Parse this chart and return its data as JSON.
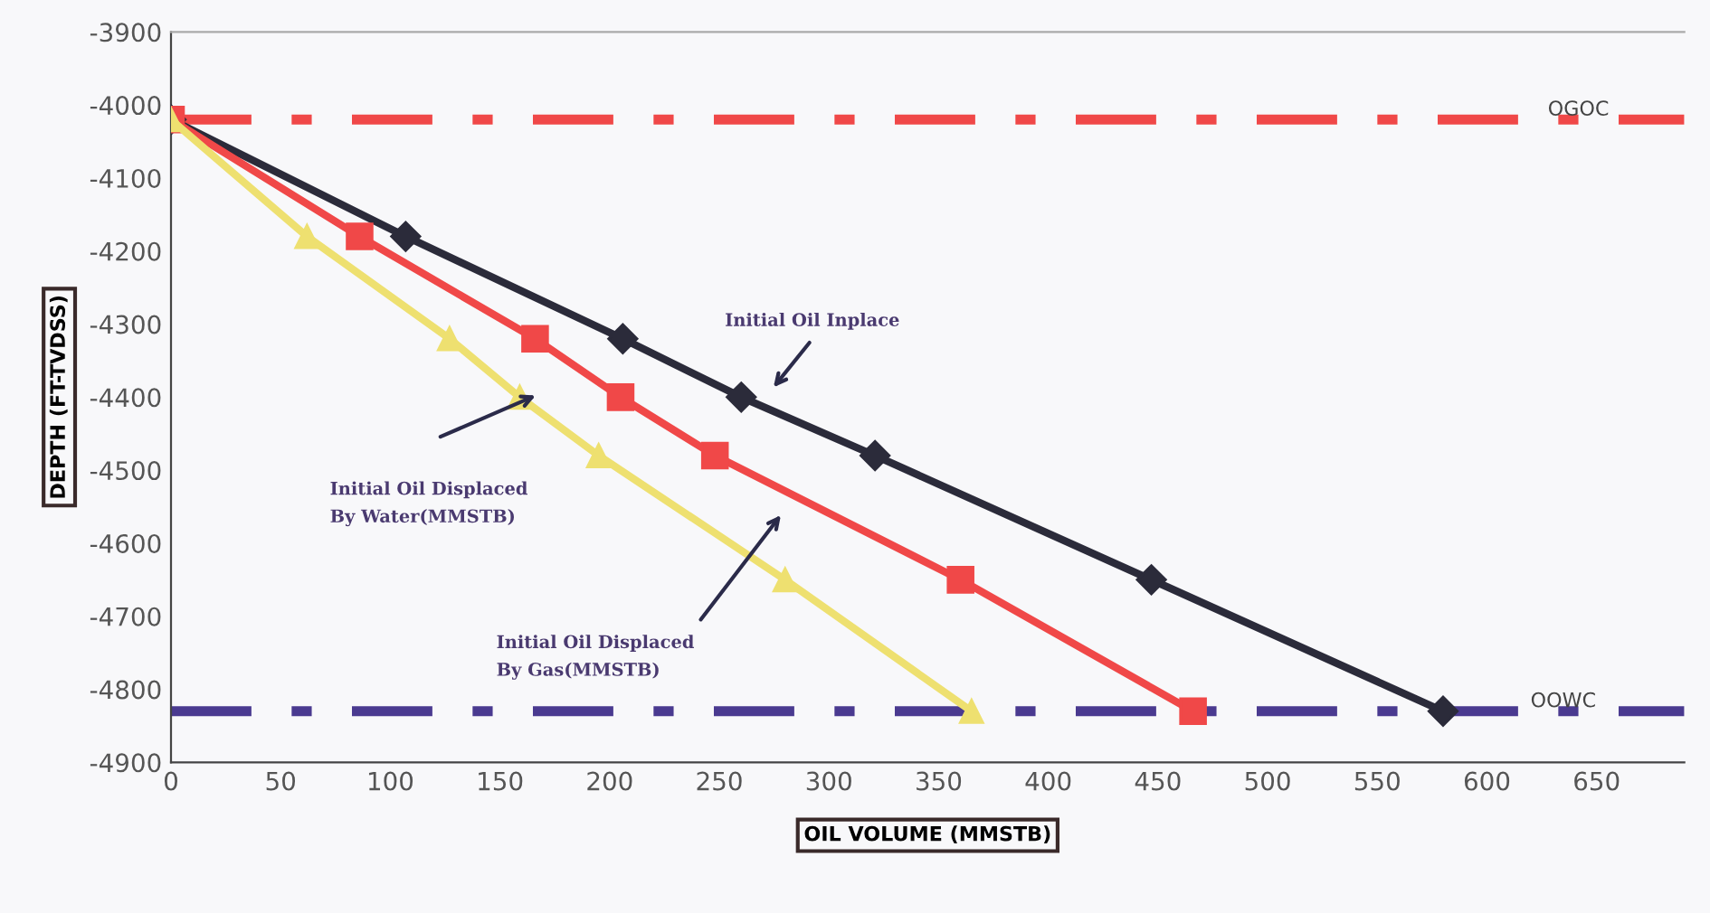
{
  "chart_data": {
    "type": "line",
    "xlabel": "OIL VOLUME (MMSTB)",
    "ylabel": "DEPTH (FT-TVDSS)",
    "xlim": [
      0,
      690
    ],
    "xticks": [
      0,
      50,
      100,
      150,
      200,
      250,
      300,
      350,
      400,
      450,
      500,
      550,
      600,
      650
    ],
    "ylim": [
      -4900,
      -3900
    ],
    "yticks": [
      -3900,
      -4000,
      -4100,
      -4200,
      -4300,
      -4400,
      -4500,
      -4600,
      -4700,
      -4800,
      -4900
    ],
    "grid": false,
    "series": [
      {
        "color": "#2b2b3a",
        "marker": "diamond",
        "x": [
          0,
          107,
          206,
          260,
          321,
          447,
          580
        ],
        "values": [
          -4020,
          -4180,
          -4320,
          -4400,
          -4480,
          -4650,
          -4830
        ]
      },
      {
        "color": "#f04848",
        "marker": "square",
        "x": [
          0,
          86,
          166,
          205,
          248,
          360,
          466
        ],
        "values": [
          -4020,
          -4180,
          -4320,
          -4400,
          -4480,
          -4650,
          -4830
        ]
      },
      {
        "color": "#eee070",
        "marker": "triangle",
        "x": [
          0,
          62,
          127,
          159,
          195,
          280,
          365
        ],
        "values": [
          -4020,
          -4180,
          -4320,
          -4400,
          -4480,
          -4650,
          -4830
        ]
      }
    ],
    "ref_lines": [
      {
        "axis": "y",
        "value": -4020,
        "label": "OGOC",
        "color": "#f04848",
        "line_style": "dashed"
      },
      {
        "axis": "y",
        "value": -4830,
        "label": "OOWC",
        "color": "#4a3a90",
        "line_style": "dashed"
      }
    ],
    "annotations": [
      "Initial Oil Inplace",
      "Initial Oil Displaced\nBy Water(MMSTB)",
      "Initial Oil Displaced\nBy Gas(MMSTB)"
    ]
  }
}
